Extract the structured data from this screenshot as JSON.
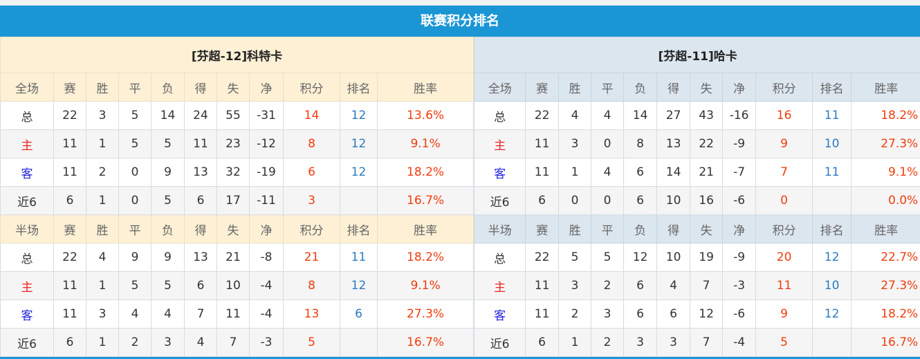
{
  "title": "联赛积分排名",
  "headers_full": [
    "全场",
    "赛",
    "胜",
    "平",
    "负",
    "得",
    "失",
    "净",
    "积分",
    "排名",
    "胜率"
  ],
  "headers_half": [
    "半场",
    "赛",
    "胜",
    "平",
    "负",
    "得",
    "失",
    "净",
    "积分",
    "排名",
    "胜率"
  ],
  "colors": {
    "accent": "#1a96d4",
    "points": "#f03c0c",
    "rank": "#2a7ac0",
    "home": "#ee2222",
    "away": "#2222dd"
  },
  "teams": [
    {
      "name": "[芬超-12]科特卡",
      "full": [
        [
          "总",
          "22",
          "3",
          "5",
          "14",
          "24",
          "55",
          "-31",
          "14",
          "12",
          "13.6%"
        ],
        [
          "主",
          "11",
          "1",
          "5",
          "5",
          "11",
          "23",
          "-12",
          "8",
          "12",
          "9.1%"
        ],
        [
          "客",
          "11",
          "2",
          "0",
          "9",
          "13",
          "32",
          "-19",
          "6",
          "12",
          "18.2%"
        ],
        [
          "近6",
          "6",
          "1",
          "0",
          "5",
          "6",
          "17",
          "-11",
          "3",
          "",
          "16.7%"
        ]
      ],
      "half": [
        [
          "总",
          "22",
          "4",
          "9",
          "9",
          "13",
          "21",
          "-8",
          "21",
          "11",
          "18.2%"
        ],
        [
          "主",
          "11",
          "1",
          "5",
          "5",
          "6",
          "10",
          "-4",
          "8",
          "12",
          "9.1%"
        ],
        [
          "客",
          "11",
          "3",
          "4",
          "4",
          "7",
          "11",
          "-4",
          "13",
          "6",
          "27.3%"
        ],
        [
          "近6",
          "6",
          "1",
          "2",
          "3",
          "4",
          "7",
          "-3",
          "5",
          "",
          "16.7%"
        ]
      ]
    },
    {
      "name": "[芬超-11]哈卡",
      "full": [
        [
          "总",
          "22",
          "4",
          "4",
          "14",
          "27",
          "43",
          "-16",
          "16",
          "11",
          "18.2%"
        ],
        [
          "主",
          "11",
          "3",
          "0",
          "8",
          "13",
          "22",
          "-9",
          "9",
          "10",
          "27.3%"
        ],
        [
          "客",
          "11",
          "1",
          "4",
          "6",
          "14",
          "21",
          "-7",
          "7",
          "11",
          "9.1%"
        ],
        [
          "近6",
          "6",
          "0",
          "0",
          "6",
          "10",
          "16",
          "-6",
          "0",
          "",
          "0.0%"
        ]
      ],
      "half": [
        [
          "总",
          "22",
          "5",
          "5",
          "12",
          "10",
          "19",
          "-9",
          "20",
          "12",
          "22.7%"
        ],
        [
          "主",
          "11",
          "3",
          "2",
          "6",
          "4",
          "7",
          "-3",
          "11",
          "10",
          "27.3%"
        ],
        [
          "客",
          "11",
          "2",
          "3",
          "6",
          "6",
          "12",
          "-6",
          "9",
          "12",
          "18.2%"
        ],
        [
          "近6",
          "6",
          "1",
          "2",
          "3",
          "3",
          "7",
          "-4",
          "5",
          "",
          "16.7%"
        ]
      ]
    }
  ]
}
